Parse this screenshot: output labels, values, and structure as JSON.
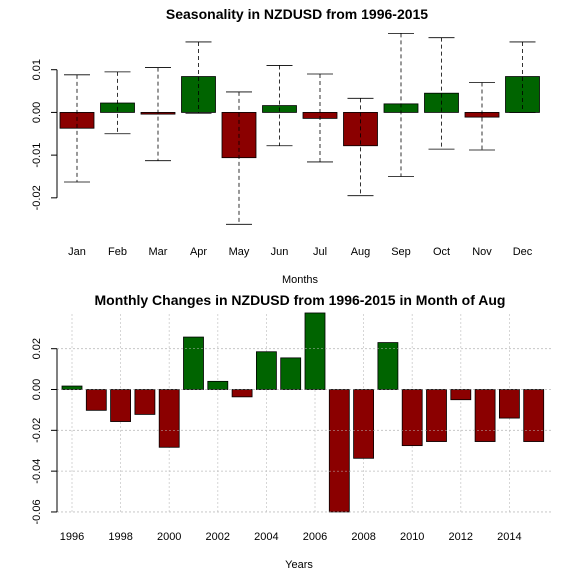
{
  "chart_data": [
    {
      "type": "bar",
      "title": "Seasonality in NZDUSD from 1996-2015",
      "xlabel": "Months",
      "ylabel": "",
      "ylim": [
        -0.028,
        0.02
      ],
      "yticks": [
        0.01,
        0.0,
        -0.01,
        -0.02
      ],
      "ytick_labels": [
        "0.01",
        "0.00",
        "-0.01",
        "-0.02"
      ],
      "grid": false,
      "categories": [
        "Jan",
        "Feb",
        "Mar",
        "Apr",
        "May",
        "Jun",
        "Jul",
        "Aug",
        "Sep",
        "Oct",
        "Nov",
        "Dec"
      ],
      "values": [
        -0.0037,
        0.0022,
        -0.0004,
        0.0084,
        -0.0106,
        0.0016,
        -0.0014,
        -0.0078,
        0.002,
        0.0045,
        -0.0011,
        0.0084
      ],
      "whisker_high": [
        0.0088,
        0.0095,
        0.0105,
        0.0165,
        0.0048,
        0.011,
        0.009,
        0.0033,
        0.0185,
        0.0175,
        0.007,
        0.0165
      ],
      "whisker_low": [
        -0.0163,
        -0.005,
        -0.0113,
        -0.0002,
        -0.0262,
        -0.0078,
        -0.0116,
        -0.0195,
        -0.015,
        -0.0086,
        -0.0088,
        0.0
      ],
      "colors": {
        "positive": "#006400",
        "negative": "#8b0000"
      }
    },
    {
      "type": "bar",
      "title": "Monthly Changes in NZDUSD from 1996-2015 in Month of Aug",
      "xlabel": "Years",
      "ylabel": "",
      "ylim": [
        -0.061,
        0.037
      ],
      "yticks": [
        0.02,
        0.0,
        -0.02,
        -0.04,
        -0.06
      ],
      "ytick_labels": [
        "0.02",
        "0.00",
        "-0.02",
        "-0.04",
        "-0.06"
      ],
      "grid": true,
      "categories": [
        "1996",
        "1997",
        "1998",
        "1999",
        "2000",
        "2001",
        "2002",
        "2003",
        "2004",
        "2005",
        "2006",
        "2007",
        "2008",
        "2009",
        "2010",
        "2011",
        "2012",
        "2013",
        "2014",
        "2015"
      ],
      "xtick_labels": [
        "1996",
        "1998",
        "2000",
        "2002",
        "2004",
        "2006",
        "2008",
        "2010",
        "2012",
        "2014"
      ],
      "values": [
        0.0017,
        -0.0102,
        -0.0157,
        -0.0122,
        -0.0283,
        0.0257,
        0.004,
        -0.0036,
        0.0185,
        0.0155,
        0.0375,
        -0.06,
        -0.0337,
        0.023,
        -0.0275,
        -0.0255,
        -0.005,
        -0.0255,
        -0.014,
        -0.0255
      ],
      "colors": {
        "positive": "#006400",
        "negative": "#8b0000"
      }
    }
  ]
}
